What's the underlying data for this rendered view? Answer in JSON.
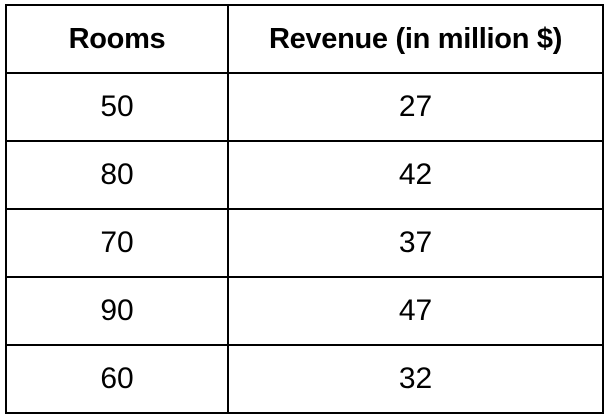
{
  "table": {
    "headers": [
      "Rooms",
      "Revenue (in million $)"
    ],
    "rows": [
      [
        "50",
        "27"
      ],
      [
        "80",
        "42"
      ],
      [
        "70",
        "37"
      ],
      [
        "90",
        "47"
      ],
      [
        "60",
        "32"
      ]
    ]
  }
}
